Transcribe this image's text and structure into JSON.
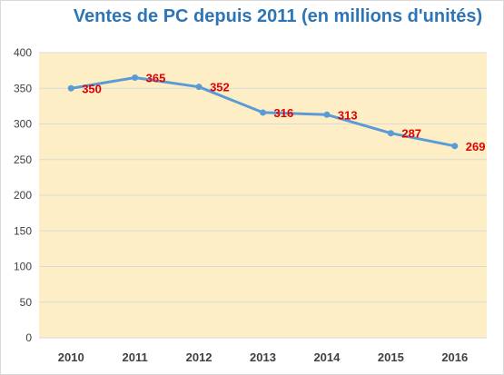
{
  "chart_data": {
    "type": "line",
    "title": "Ventes de PC depuis 2011 (en millions d'unités)",
    "categories": [
      "2010",
      "2011",
      "2012",
      "2013",
      "2014",
      "2015",
      "2016"
    ],
    "series": [
      {
        "values": [
          350,
          365,
          352,
          316,
          313,
          287,
          269
        ]
      }
    ],
    "data_labels": [
      "350",
      "365",
      "352",
      "316",
      "313",
      "287",
      "269"
    ],
    "y_ticks": [
      "0",
      "50",
      "100",
      "150",
      "200",
      "250",
      "300",
      "350",
      "400"
    ],
    "ylim": [
      0,
      400
    ],
    "xlabel": "",
    "ylabel": "",
    "grid": true,
    "colors": {
      "plot_background": "#fdeec6",
      "line": "#5b9bd5",
      "data_label": "#e00000",
      "title": "#2e75b6",
      "gridline": "#d9d9d9"
    }
  }
}
